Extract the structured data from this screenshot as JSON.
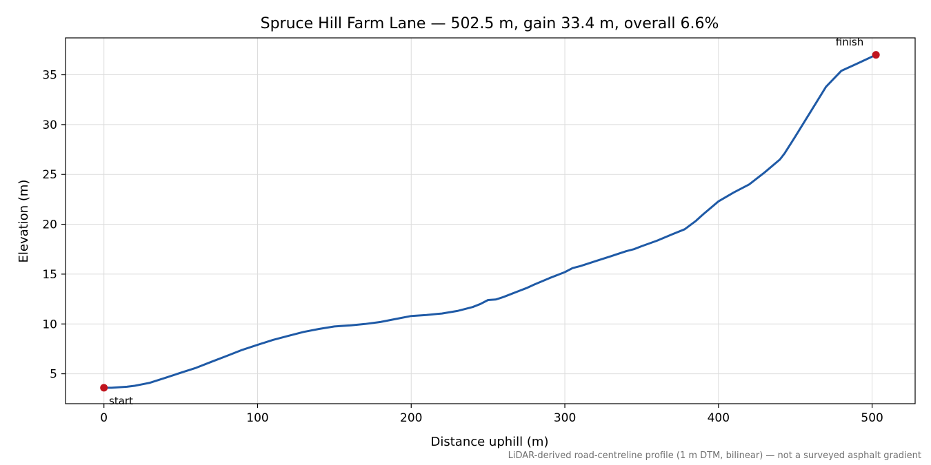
{
  "chart_data": {
    "type": "line",
    "title": "Spruce Hill Farm Lane — 502.5 m, gain 33.4 m, overall 6.6%",
    "xlabel": "Distance uphill (m)",
    "ylabel": "Elevation (m)",
    "xlim": [
      -25,
      528
    ],
    "ylim": [
      2.0,
      38.7
    ],
    "xticks": [
      0,
      100,
      200,
      300,
      400,
      500
    ],
    "yticks": [
      5,
      10,
      15,
      20,
      25,
      30,
      35
    ],
    "grid": true,
    "colors": {
      "line": "#1f5aa6",
      "marker": "#c0141e",
      "grid": "#dcdcdc"
    },
    "series": [
      {
        "x": [
          0,
          5,
          10,
          15,
          20,
          25,
          30,
          40,
          50,
          60,
          70,
          80,
          90,
          100,
          110,
          120,
          130,
          140,
          150,
          160,
          170,
          180,
          190,
          200,
          210,
          220,
          230,
          240,
          245,
          250,
          255,
          260,
          265,
          270,
          275,
          280,
          290,
          300,
          305,
          310,
          320,
          330,
          340,
          345,
          350,
          360,
          370,
          378,
          385,
          390,
          400,
          410,
          420,
          430,
          440,
          443,
          450,
          460,
          470,
          480,
          490,
          502.5
        ],
        "y": [
          3.6,
          3.6,
          3.65,
          3.7,
          3.8,
          3.95,
          4.1,
          4.6,
          5.1,
          5.6,
          6.2,
          6.8,
          7.4,
          7.9,
          8.4,
          8.8,
          9.2,
          9.5,
          9.75,
          9.85,
          10.0,
          10.2,
          10.5,
          10.8,
          10.9,
          11.05,
          11.3,
          11.7,
          12.0,
          12.4,
          12.45,
          12.7,
          13.0,
          13.3,
          13.6,
          13.95,
          14.6,
          15.2,
          15.6,
          15.8,
          16.3,
          16.8,
          17.3,
          17.5,
          17.8,
          18.35,
          19.0,
          19.5,
          20.3,
          21.0,
          22.3,
          23.2,
          24.0,
          25.2,
          26.5,
          27.1,
          28.8,
          31.3,
          33.8,
          35.4,
          36.1,
          37.0
        ]
      }
    ],
    "annotations": [
      {
        "text": "start",
        "x": 0,
        "y": 3.6
      },
      {
        "text": "finish",
        "x": 502.5,
        "y": 37.0
      }
    ],
    "footnote": "LiDAR-derived road-centreline profile (1 m DTM, bilinear) — not a surveyed asphalt gradient"
  }
}
